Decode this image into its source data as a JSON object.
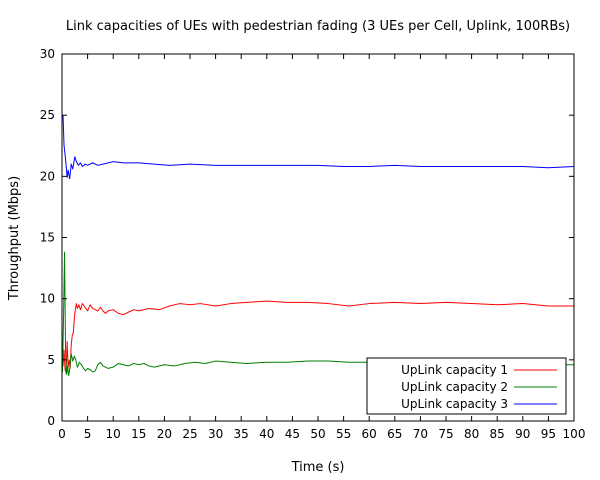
{
  "chart_data": {
    "type": "line",
    "title": "Link capacities of UEs with pedestrian fading (3 UEs per Cell, Uplink, 100RBs)",
    "xlabel": "Time (s)",
    "ylabel": "Throughput (Mbps)",
    "xlim": [
      0,
      100
    ],
    "ylim": [
      0,
      30
    ],
    "xticks": [
      0,
      5,
      10,
      15,
      20,
      25,
      30,
      35,
      40,
      45,
      50,
      55,
      60,
      65,
      70,
      75,
      80,
      85,
      90,
      95,
      100
    ],
    "yticks": [
      0,
      5,
      10,
      15,
      20,
      25,
      30
    ],
    "grid": false,
    "legend_position": "bottom-right",
    "series": [
      {
        "name": "UpLink capacity 1",
        "color": "#ff0000",
        "points": [
          [
            0.2,
            4.5
          ],
          [
            0.4,
            5.8
          ],
          [
            0.6,
            4.2
          ],
          [
            0.8,
            3.9
          ],
          [
            1.0,
            6.5
          ],
          [
            1.2,
            4.4
          ],
          [
            1.4,
            5.0
          ],
          [
            1.6,
            4.3
          ],
          [
            1.8,
            6.2
          ],
          [
            2.0,
            7.0
          ],
          [
            2.2,
            7.2
          ],
          [
            2.5,
            8.8
          ],
          [
            2.8,
            9.6
          ],
          [
            3.0,
            9.2
          ],
          [
            3.3,
            9.5
          ],
          [
            3.6,
            9.1
          ],
          [
            4.0,
            9.6
          ],
          [
            4.5,
            9.3
          ],
          [
            5.0,
            9.0
          ],
          [
            5.5,
            9.5
          ],
          [
            6.0,
            9.2
          ],
          [
            6.5,
            9.1
          ],
          [
            7.0,
            9.0
          ],
          [
            7.5,
            9.3
          ],
          [
            8.0,
            9.0
          ],
          [
            8.5,
            8.8
          ],
          [
            9.0,
            9.0
          ],
          [
            10.0,
            9.1
          ],
          [
            11.0,
            8.8
          ],
          [
            12.0,
            8.7
          ],
          [
            13.0,
            8.9
          ],
          [
            14.0,
            9.1
          ],
          [
            15.0,
            9.0
          ],
          [
            17.0,
            9.2
          ],
          [
            19.0,
            9.1
          ],
          [
            21.0,
            9.4
          ],
          [
            23.0,
            9.6
          ],
          [
            25.0,
            9.5
          ],
          [
            27.0,
            9.6
          ],
          [
            30.0,
            9.4
          ],
          [
            33.0,
            9.6
          ],
          [
            36.0,
            9.7
          ],
          [
            40.0,
            9.8
          ],
          [
            44.0,
            9.7
          ],
          [
            48.0,
            9.7
          ],
          [
            52.0,
            9.6
          ],
          [
            56.0,
            9.4
          ],
          [
            60.0,
            9.6
          ],
          [
            65.0,
            9.7
          ],
          [
            70.0,
            9.6
          ],
          [
            75.0,
            9.7
          ],
          [
            80.0,
            9.6
          ],
          [
            85.0,
            9.5
          ],
          [
            90.0,
            9.6
          ],
          [
            95.0,
            9.4
          ],
          [
            100.0,
            9.4
          ]
        ]
      },
      {
        "name": "UpLink capacity 2",
        "color": "#008000",
        "points": [
          [
            0.1,
            4.0
          ],
          [
            0.3,
            8.5
          ],
          [
            0.5,
            13.8
          ],
          [
            0.7,
            5.5
          ],
          [
            0.9,
            3.8
          ],
          [
            1.1,
            4.5
          ],
          [
            1.3,
            3.7
          ],
          [
            1.5,
            4.2
          ],
          [
            1.8,
            5.5
          ],
          [
            2.1,
            4.9
          ],
          [
            2.4,
            5.3
          ],
          [
            2.7,
            5.0
          ],
          [
            3.0,
            4.4
          ],
          [
            3.4,
            4.8
          ],
          [
            3.8,
            4.6
          ],
          [
            4.2,
            4.3
          ],
          [
            4.6,
            4.1
          ],
          [
            5.0,
            4.3
          ],
          [
            5.5,
            4.2
          ],
          [
            6.0,
            4.0
          ],
          [
            6.5,
            4.1
          ],
          [
            7.0,
            4.6
          ],
          [
            7.5,
            4.8
          ],
          [
            8.0,
            4.5
          ],
          [
            9.0,
            4.3
          ],
          [
            10.0,
            4.4
          ],
          [
            11.0,
            4.7
          ],
          [
            12.0,
            4.6
          ],
          [
            13.0,
            4.5
          ],
          [
            14.0,
            4.7
          ],
          [
            15.0,
            4.6
          ],
          [
            16.0,
            4.7
          ],
          [
            17.0,
            4.5
          ],
          [
            18.0,
            4.4
          ],
          [
            20.0,
            4.6
          ],
          [
            22.0,
            4.5
          ],
          [
            24.0,
            4.7
          ],
          [
            26.0,
            4.8
          ],
          [
            28.0,
            4.7
          ],
          [
            30.0,
            4.9
          ],
          [
            33.0,
            4.8
          ],
          [
            36.0,
            4.7
          ],
          [
            40.0,
            4.8
          ],
          [
            44.0,
            4.8
          ],
          [
            48.0,
            4.9
          ],
          [
            52.0,
            4.9
          ],
          [
            56.0,
            4.8
          ],
          [
            60.0,
            4.8
          ],
          [
            65.0,
            4.7
          ],
          [
            70.0,
            4.7
          ],
          [
            75.0,
            4.7
          ],
          [
            80.0,
            4.8
          ],
          [
            85.0,
            4.7
          ],
          [
            90.0,
            4.7
          ],
          [
            95.0,
            4.6
          ],
          [
            100.0,
            4.6
          ]
        ]
      },
      {
        "name": "UpLink capacity 3",
        "color": "#0000ff",
        "points": [
          [
            0.2,
            25.0
          ],
          [
            0.4,
            22.5
          ],
          [
            0.6,
            21.8
          ],
          [
            0.8,
            20.9
          ],
          [
            1.0,
            19.9
          ],
          [
            1.2,
            20.5
          ],
          [
            1.5,
            19.8
          ],
          [
            1.8,
            21.0
          ],
          [
            2.1,
            20.6
          ],
          [
            2.5,
            21.6
          ],
          [
            2.8,
            21.2
          ],
          [
            3.2,
            20.9
          ],
          [
            3.6,
            21.1
          ],
          [
            4.0,
            20.8
          ],
          [
            4.5,
            21.0
          ],
          [
            5.0,
            20.9
          ],
          [
            6.0,
            21.1
          ],
          [
            7.0,
            20.9
          ],
          [
            8.0,
            21.0
          ],
          [
            10.0,
            21.2
          ],
          [
            12.0,
            21.1
          ],
          [
            15.0,
            21.1
          ],
          [
            18.0,
            21.0
          ],
          [
            21.0,
            20.9
          ],
          [
            25.0,
            21.0
          ],
          [
            30.0,
            20.9
          ],
          [
            35.0,
            20.9
          ],
          [
            40.0,
            20.9
          ],
          [
            45.0,
            20.9
          ],
          [
            50.0,
            20.9
          ],
          [
            55.0,
            20.8
          ],
          [
            60.0,
            20.8
          ],
          [
            65.0,
            20.9
          ],
          [
            70.0,
            20.8
          ],
          [
            75.0,
            20.8
          ],
          [
            80.0,
            20.8
          ],
          [
            85.0,
            20.8
          ],
          [
            90.0,
            20.8
          ],
          [
            95.0,
            20.7
          ],
          [
            100.0,
            20.8
          ]
        ]
      }
    ]
  }
}
